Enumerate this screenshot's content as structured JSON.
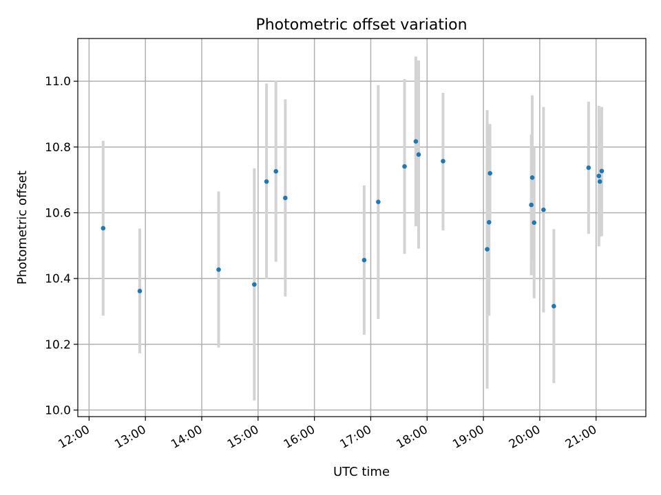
{
  "chart_data": {
    "type": "scatter",
    "title": "Photometric offset variation",
    "xlabel": "UTC time",
    "ylabel": "Photometric offset",
    "x_tick_labels": [
      "12:00",
      "13:00",
      "14:00",
      "15:00",
      "16:00",
      "17:00",
      "18:00",
      "19:00",
      "20:00",
      "21:00"
    ],
    "y_tick_labels": [
      "10.0",
      "10.2",
      "10.4",
      "10.6",
      "10.8",
      "11.0"
    ],
    "xlim": [
      "11:48",
      "21:53"
    ],
    "ylim": [
      9.98,
      11.13
    ],
    "grid": true,
    "colors": {
      "points": "#1f77b4",
      "errorbars": "#d3d3d3",
      "grid": "#b0b0b0"
    },
    "points": [
      {
        "x": "12:15",
        "y": 10.553,
        "ylow": 10.287,
        "yhigh": 10.819
      },
      {
        "x": "12:54",
        "y": 10.362,
        "ylow": 10.173,
        "yhigh": 10.552
      },
      {
        "x": "14:18",
        "y": 10.427,
        "ylow": 10.19,
        "yhigh": 10.665
      },
      {
        "x": "14:56",
        "y": 10.382,
        "ylow": 10.029,
        "yhigh": 10.735
      },
      {
        "x": "15:09",
        "y": 10.695,
        "ylow": 10.399,
        "yhigh": 10.993
      },
      {
        "x": "15:19",
        "y": 10.726,
        "ylow": 10.451,
        "yhigh": 11.002
      },
      {
        "x": "15:29",
        "y": 10.645,
        "ylow": 10.345,
        "yhigh": 10.945
      },
      {
        "x": "16:53",
        "y": 10.456,
        "ylow": 10.229,
        "yhigh": 10.683
      },
      {
        "x": "17:08",
        "y": 10.633,
        "ylow": 10.277,
        "yhigh": 10.988
      },
      {
        "x": "17:36",
        "y": 10.741,
        "ylow": 10.475,
        "yhigh": 11.007
      },
      {
        "x": "17:48",
        "y": 10.817,
        "ylow": 10.559,
        "yhigh": 11.075
      },
      {
        "x": "17:51",
        "y": 10.777,
        "ylow": 10.491,
        "yhigh": 11.063
      },
      {
        "x": "18:17",
        "y": 10.757,
        "ylow": 10.546,
        "yhigh": 10.965
      },
      {
        "x": "19:04",
        "y": 10.489,
        "ylow": 10.065,
        "yhigh": 10.912
      },
      {
        "x": "19:06",
        "y": 10.571,
        "ylow": 10.287,
        "yhigh": 10.87
      },
      {
        "x": "19:07",
        "y": 10.72,
        "ylow": 10.57,
        "yhigh": 10.87
      },
      {
        "x": "19:51",
        "y": 10.624,
        "ylow": 10.41,
        "yhigh": 10.838
      },
      {
        "x": "19:52",
        "y": 10.707,
        "ylow": 10.456,
        "yhigh": 10.957
      },
      {
        "x": "19:54",
        "y": 10.57,
        "ylow": 10.34,
        "yhigh": 10.8
      },
      {
        "x": "20:04",
        "y": 10.609,
        "ylow": 10.297,
        "yhigh": 10.922
      },
      {
        "x": "20:15",
        "y": 10.316,
        "ylow": 10.082,
        "yhigh": 10.55
      },
      {
        "x": "20:52",
        "y": 10.737,
        "ylow": 10.536,
        "yhigh": 10.938
      },
      {
        "x": "21:03",
        "y": 10.712,
        "ylow": 10.498,
        "yhigh": 10.925
      },
      {
        "x": "21:04",
        "y": 10.695,
        "ylow": 10.527,
        "yhigh": 10.863
      },
      {
        "x": "21:06",
        "y": 10.727,
        "ylow": 10.529,
        "yhigh": 10.922
      }
    ]
  }
}
